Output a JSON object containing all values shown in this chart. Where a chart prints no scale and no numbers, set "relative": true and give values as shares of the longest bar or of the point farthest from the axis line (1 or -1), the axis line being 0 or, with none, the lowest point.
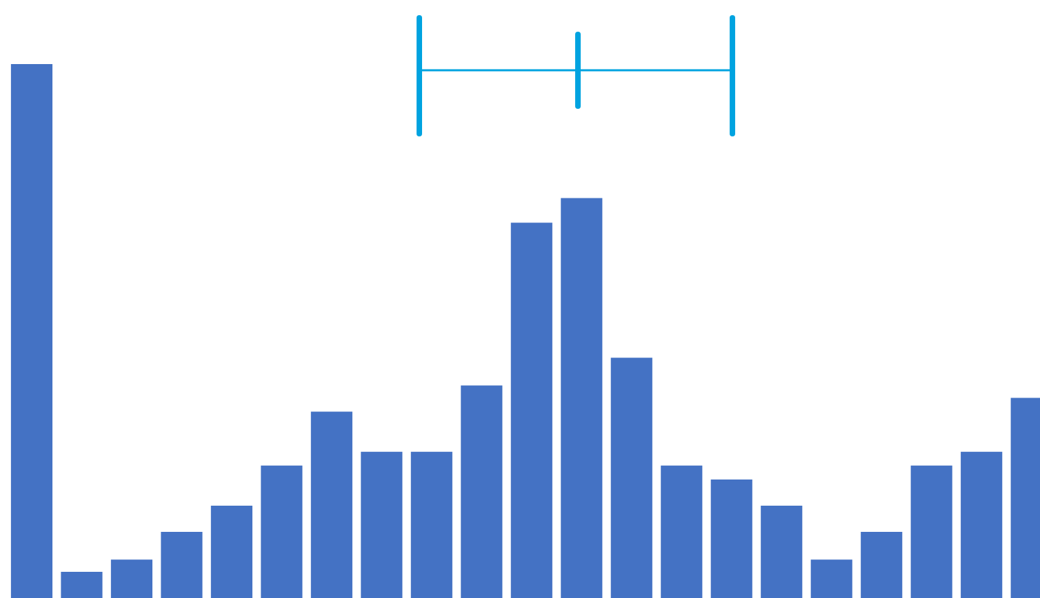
{
  "chart_data": {
    "type": "bar",
    "relative": true,
    "color": "#4472c4",
    "categories": [
      null,
      null,
      null,
      null,
      null,
      null,
      null,
      null,
      null,
      null,
      null,
      null,
      null,
      null,
      null,
      null,
      null,
      null,
      null,
      null,
      null
    ],
    "values": [
      1,
      0.049,
      0.072,
      0.124,
      0.173,
      0.248,
      0.349,
      0.274,
      0.274,
      0.398,
      0.703,
      0.749,
      0.45,
      0.248,
      0.222,
      0.173,
      0.072,
      0.124,
      0.248,
      0.274,
      0.375
    ]
  }
}
